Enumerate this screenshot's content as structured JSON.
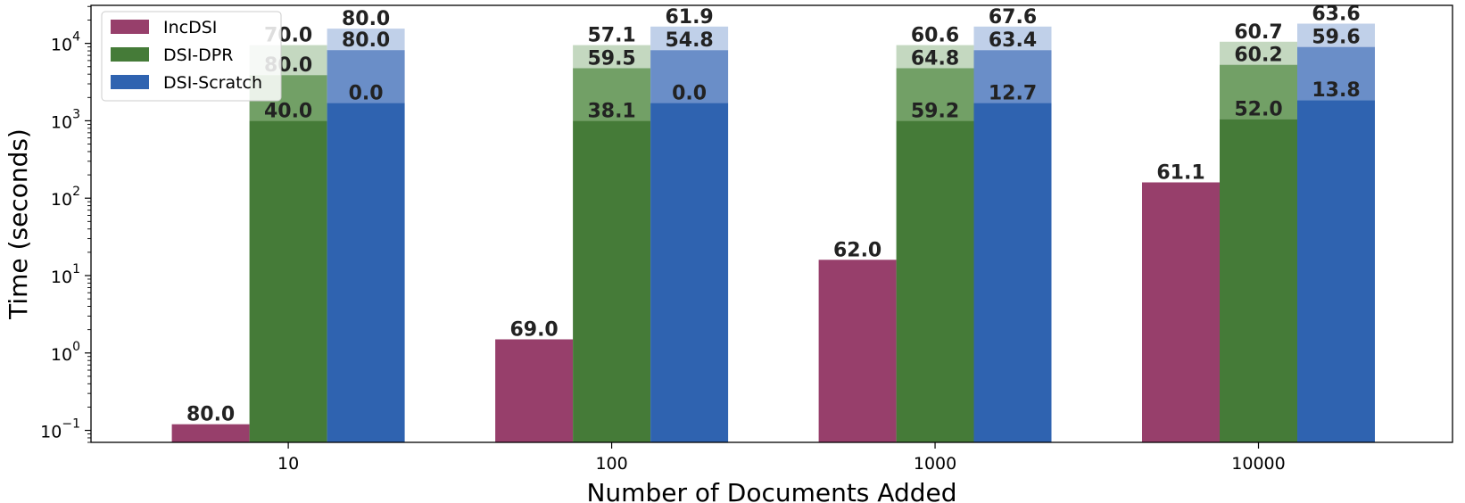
{
  "chart_data": {
    "type": "bar",
    "stacked": true,
    "xlabel": "Number of Documents Added",
    "ylabel": "Time (seconds)",
    "yscale": "log",
    "ylim": [
      0.07,
      31000
    ],
    "yticks": [
      0.1,
      1,
      10,
      100,
      1000,
      10000
    ],
    "ytick_labels": [
      {
        "base": "10",
        "exp": "−1"
      },
      {
        "base": "10",
        "exp": "0"
      },
      {
        "base": "10",
        "exp": "1"
      },
      {
        "base": "10",
        "exp": "2"
      },
      {
        "base": "10",
        "exp": "3"
      },
      {
        "base": "10",
        "exp": "4"
      }
    ],
    "categories": [
      "10",
      "100",
      "1000",
      "10000"
    ],
    "legend_position": "top-left",
    "grid": false,
    "series": [
      {
        "name": "IncDSI",
        "color": "#973f6b",
        "segments": [
          [
            {
              "top": 0.12,
              "label": "80.0"
            }
          ],
          [
            {
              "top": 1.5,
              "label": "69.0"
            }
          ],
          [
            {
              "top": 16,
              "label": "62.0"
            }
          ],
          [
            {
              "top": 160,
              "label": "61.1"
            }
          ]
        ]
      },
      {
        "name": "DSI-DPR",
        "color": "#457b38",
        "segment_colors": [
          "#457b38",
          "#72a066",
          "#c4d8c0"
        ],
        "segments": [
          [
            {
              "top": 1000,
              "label": "40.0"
            },
            {
              "top": 3900,
              "label": "80.0"
            },
            {
              "top": 9500,
              "label": "70.0"
            }
          ],
          [
            {
              "top": 1000,
              "label": "38.1"
            },
            {
              "top": 4800,
              "label": "59.5"
            },
            {
              "top": 9500,
              "label": "57.1"
            }
          ],
          [
            {
              "top": 1000,
              "label": "59.2"
            },
            {
              "top": 4800,
              "label": "64.8"
            },
            {
              "top": 9500,
              "label": "60.6"
            }
          ],
          [
            {
              "top": 1050,
              "label": "52.0"
            },
            {
              "top": 5300,
              "label": "60.2"
            },
            {
              "top": 10500,
              "label": "60.7"
            }
          ]
        ]
      },
      {
        "name": "DSI-Scratch",
        "color": "#2f63b0",
        "segment_colors": [
          "#2f63b0",
          "#6a8ec8",
          "#c0d0e9"
        ],
        "segments": [
          [
            {
              "top": 1700,
              "label": "0.0"
            },
            {
              "top": 8200,
              "label": "80.0"
            },
            {
              "top": 15500,
              "label": "80.0"
            }
          ],
          [
            {
              "top": 1700,
              "label": "0.0"
            },
            {
              "top": 8200,
              "label": "54.8"
            },
            {
              "top": 16500,
              "label": "61.9"
            }
          ],
          [
            {
              "top": 1700,
              "label": "12.7"
            },
            {
              "top": 8200,
              "label": "63.4"
            },
            {
              "top": 16500,
              "label": "67.6"
            }
          ],
          [
            {
              "top": 1850,
              "label": "13.8"
            },
            {
              "top": 9000,
              "label": "59.6"
            },
            {
              "top": 18000,
              "label": "63.6"
            }
          ]
        ]
      }
    ]
  }
}
